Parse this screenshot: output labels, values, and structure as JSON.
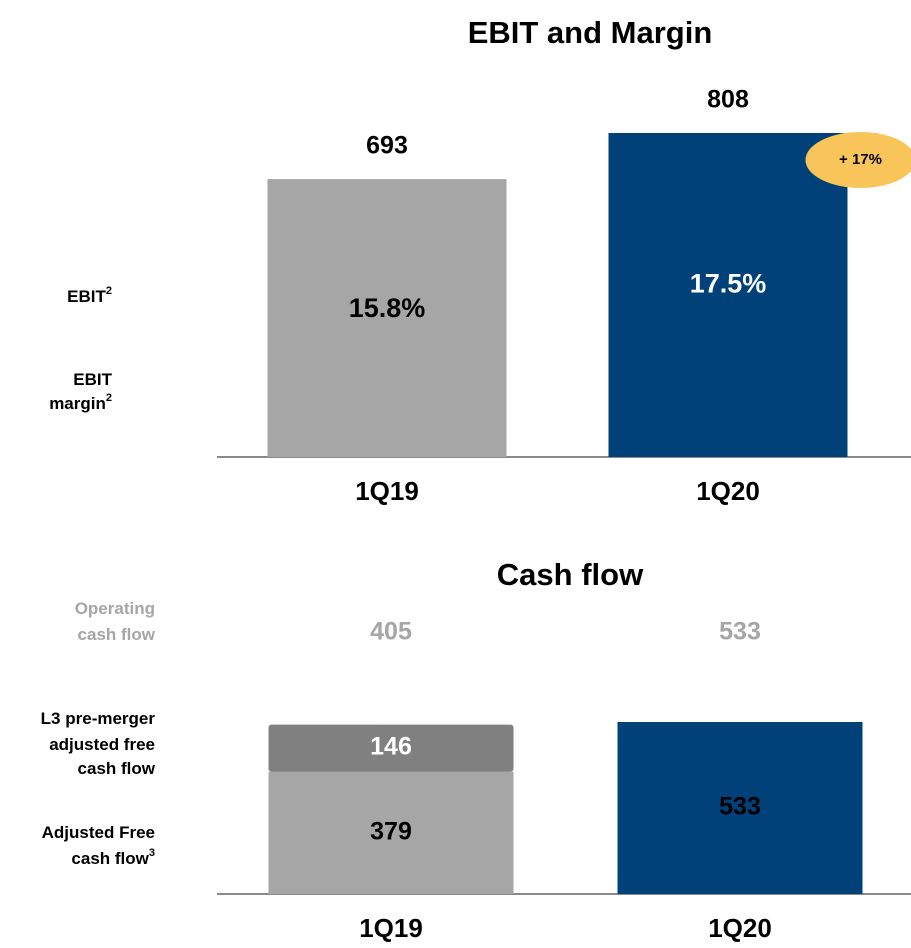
{
  "chart_data": [
    {
      "type": "bar",
      "title": "EBIT and Margin",
      "categories": [
        "1Q19",
        "1Q20"
      ],
      "values": [
        693,
        808
      ],
      "colors": [
        "#a6a6a6",
        "#004179"
      ],
      "margins": {
        "values": [
          15.8,
          17.5
        ],
        "value_labels": [
          "15.8%",
          "17.5%"
        ]
      },
      "row_labels": [
        {
          "lines": [
            "EBIT"
          ],
          "sup": "2"
        },
        {
          "lines": [
            "EBIT",
            "margin"
          ],
          "sup": "2"
        }
      ],
      "annotation": {
        "text": "+ 17%",
        "color": "#f9c55b"
      }
    },
    {
      "type": "stacked_bar",
      "title": "Cash flow",
      "categories": [
        "1Q19",
        "1Q20"
      ],
      "series": [
        {
          "name_lines": [
            "Adjusted Free",
            "cash flow"
          ],
          "sup": "3",
          "colors": [
            "#a6a6a6",
            "#004179"
          ],
          "values": [
            379,
            533
          ]
        },
        {
          "name_lines": [
            "L3 pre-merger",
            "adjusted free",
            "cash flow"
          ],
          "colors": [
            "#808080",
            "#004179"
          ],
          "values": [
            146,
            null
          ]
        }
      ],
      "operating": {
        "lines": [
          "Operating",
          "cash flow"
        ],
        "color": "#a6a6a6",
        "values": [
          405,
          533
        ]
      }
    }
  ]
}
